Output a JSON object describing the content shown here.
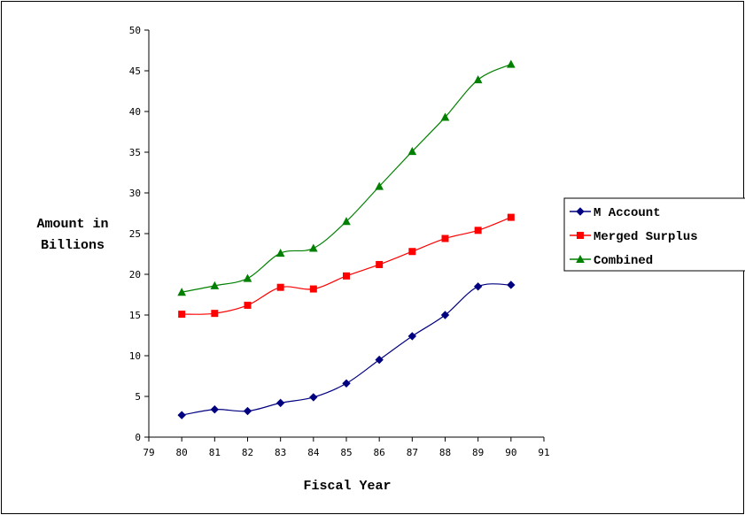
{
  "chart_data": {
    "type": "line",
    "title": "",
    "xlabel": "Fiscal Year",
    "ylabel_lines": [
      "Amount in",
      "Billions"
    ],
    "xlim": [
      79,
      91
    ],
    "ylim": [
      0,
      50
    ],
    "x_ticks": [
      79,
      80,
      81,
      82,
      83,
      84,
      85,
      86,
      87,
      88,
      89,
      90,
      91
    ],
    "y_ticks": [
      0,
      5,
      10,
      15,
      20,
      25,
      30,
      35,
      40,
      45,
      50
    ],
    "grid": false,
    "legend_position": "right",
    "x": [
      80,
      81,
      82,
      83,
      84,
      85,
      86,
      87,
      88,
      89,
      90
    ],
    "series": [
      {
        "name": "M Account",
        "color": "#000080",
        "marker": "diamond",
        "values": [
          2.7,
          3.4,
          3.2,
          4.2,
          4.9,
          6.6,
          9.5,
          12.4,
          15.0,
          18.5,
          18.7
        ]
      },
      {
        "name": "Merged Surplus",
        "color": "#ff0000",
        "marker": "square",
        "values": [
          15.1,
          15.2,
          16.2,
          18.4,
          18.2,
          19.8,
          21.2,
          22.8,
          24.4,
          25.4,
          27.0
        ]
      },
      {
        "name": "Combined",
        "color": "#008000",
        "marker": "triangle",
        "values": [
          17.8,
          18.6,
          19.5,
          22.6,
          23.2,
          26.5,
          30.8,
          35.1,
          39.3,
          43.9,
          45.8
        ]
      }
    ]
  }
}
